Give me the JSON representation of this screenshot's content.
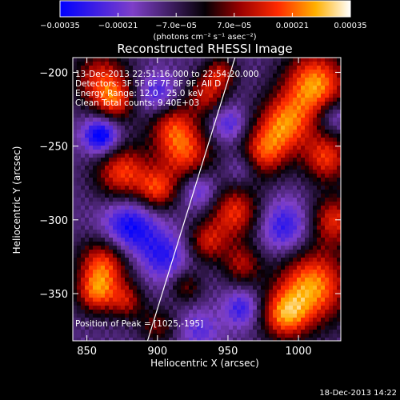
{
  "chart_data": {
    "type": "heatmap",
    "title": "Reconstructed RHESSI Image",
    "xlabel": "Heliocentric X (arcsec)",
    "ylabel": "Heliocentric Y (arcsec)",
    "xlim": [
      840,
      1030
    ],
    "ylim": [
      -382,
      -190
    ],
    "xticks": [
      850,
      900,
      950,
      1000
    ],
    "yticks": [
      -200,
      -250,
      -300,
      -350
    ],
    "xticklabels": [
      "850",
      "900",
      "950",
      "1000"
    ],
    "yticklabels": [
      "−200",
      "−250",
      "−300",
      "−350"
    ],
    "colorbar": {
      "range": [
        -0.00035,
        0.00035
      ],
      "ticks": [
        -0.00035,
        -0.00021,
        -7e-05,
        7e-05,
        0.00021,
        0.00035
      ],
      "ticklabels": [
        "−0.00035",
        "−0.00021",
        "−7.0e−05",
        "7.0e−05",
        "0.00021",
        "0.00035"
      ],
      "units": "(photons cm⁻² s⁻¹ asec⁻²)"
    },
    "annotations": {
      "time": "13-Dec-2013 22:51:16.000 to 22:54:20.000",
      "detectors": "Detectors: 3F 5F 6F 7F 8F 9F, All D",
      "energy": "Energy Range: 12.0 - 25.0 keV",
      "clean": "Clean    Total counts: 9.40E+03",
      "peak": "Position of Peak = [1025,-195]"
    },
    "limb_line": [
      [
        893,
        -382
      ],
      [
        955,
        -190
      ]
    ],
    "blobs": [
      {
        "x": 875,
        "y": -268,
        "amp": 0.8,
        "s": 14
      },
      {
        "x": 920,
        "y": -255,
        "amp": 0.75,
        "s": 14
      },
      {
        "x": 910,
        "y": -235,
        "amp": 0.6,
        "s": 12
      },
      {
        "x": 900,
        "y": -280,
        "amp": 0.7,
        "s": 10
      },
      {
        "x": 860,
        "y": -205,
        "amp": 0.7,
        "s": 14
      },
      {
        "x": 870,
        "y": -220,
        "amp": 0.6,
        "s": 10
      },
      {
        "x": 935,
        "y": -215,
        "amp": 0.6,
        "s": 10
      },
      {
        "x": 945,
        "y": -200,
        "amp": 0.55,
        "s": 8
      },
      {
        "x": 1012,
        "y": -208,
        "amp": 1.0,
        "s": 16
      },
      {
        "x": 990,
        "y": -235,
        "amp": 0.85,
        "s": 14
      },
      {
        "x": 975,
        "y": -255,
        "amp": 0.7,
        "s": 12
      },
      {
        "x": 1020,
        "y": -258,
        "amp": 0.75,
        "s": 12
      },
      {
        "x": 955,
        "y": -295,
        "amp": 0.75,
        "s": 13
      },
      {
        "x": 935,
        "y": -315,
        "amp": 0.6,
        "s": 10
      },
      {
        "x": 960,
        "y": -330,
        "amp": 0.55,
        "s": 10
      },
      {
        "x": 1010,
        "y": -345,
        "amp": 1.0,
        "s": 18
      },
      {
        "x": 990,
        "y": -365,
        "amp": 0.8,
        "s": 12
      },
      {
        "x": 1025,
        "y": -300,
        "amp": 0.7,
        "s": 12
      },
      {
        "x": 862,
        "y": -330,
        "amp": 0.85,
        "s": 13
      },
      {
        "x": 856,
        "y": -350,
        "amp": 0.7,
        "s": 10
      },
      {
        "x": 878,
        "y": -355,
        "amp": 0.55,
        "s": 9
      },
      {
        "x": 920,
        "y": -345,
        "amp": 0.45,
        "s": 8
      },
      {
        "x": 900,
        "y": -372,
        "amp": 0.45,
        "s": 9
      },
      {
        "x": 860,
        "y": -243,
        "amp": -0.85,
        "s": 9
      },
      {
        "x": 900,
        "y": -215,
        "amp": -0.5,
        "s": 10
      },
      {
        "x": 930,
        "y": -280,
        "amp": -0.45,
        "s": 9
      },
      {
        "x": 880,
        "y": -305,
        "amp": -0.7,
        "s": 14
      },
      {
        "x": 905,
        "y": -325,
        "amp": -0.5,
        "s": 12
      },
      {
        "x": 950,
        "y": -235,
        "amp": -0.45,
        "s": 9
      },
      {
        "x": 990,
        "y": -305,
        "amp": -0.55,
        "s": 13
      },
      {
        "x": 960,
        "y": -360,
        "amp": -0.5,
        "s": 9
      },
      {
        "x": 1025,
        "y": -230,
        "amp": -0.4,
        "s": 8
      },
      {
        "x": 930,
        "y": -375,
        "amp": -0.35,
        "s": 10
      },
      {
        "x": 960,
        "y": -265,
        "amp": -0.3,
        "s": 8
      }
    ],
    "grid": false
  },
  "footer": {
    "timestamp": "18-Dec-2013 14:22"
  },
  "colors": {
    "background": "#000000",
    "foreground": "#ffffff"
  }
}
